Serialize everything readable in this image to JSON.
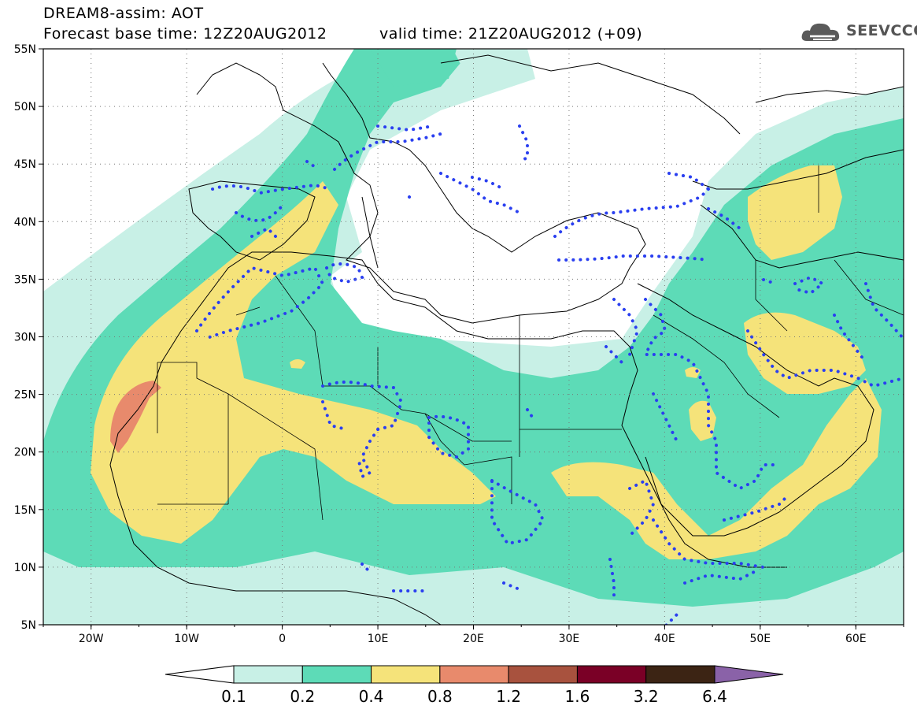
{
  "header": {
    "title": "DREAM8-assim: AOT",
    "base_time": "Forecast base time: 12Z20AUG2012",
    "valid_time": "valid time: 21Z20AUG2012 (+09)",
    "logo_text": "SEEVCCC"
  },
  "map": {
    "lon_range": [
      -25,
      65
    ],
    "lat_range": [
      5,
      55
    ],
    "lon_ticks": [
      "20W",
      "10W",
      "0",
      "10E",
      "20E",
      "30E",
      "40E",
      "50E",
      "60E"
    ],
    "lat_ticks": [
      "55N",
      "50N",
      "45N",
      "40N",
      "35N",
      "30N",
      "25N",
      "20N",
      "15N",
      "10N",
      "5N"
    ],
    "grid": true,
    "contour_colors": {
      "0.1": "#c8f0e6",
      "0.2": "#5ddbb7",
      "0.4": "#f5e37a",
      "0.8": "#e88a6c",
      "1.2": "#a8523e",
      "1.6": "#7a0026",
      "3.2": "#3c2414",
      "6.4": "#8a62a8"
    },
    "dotted_contour_color": "#2a3ff0"
  },
  "colorbar": {
    "labels": [
      "0.1",
      "0.2",
      "0.4",
      "0.8",
      "1.2",
      "1.6",
      "3.2",
      "6.4"
    ],
    "colors": [
      "#ffffff",
      "#c8f0e6",
      "#5ddbb7",
      "#f5e37a",
      "#e88a6c",
      "#a8523e",
      "#7a0026",
      "#3c2414",
      "#8a62a8"
    ]
  }
}
